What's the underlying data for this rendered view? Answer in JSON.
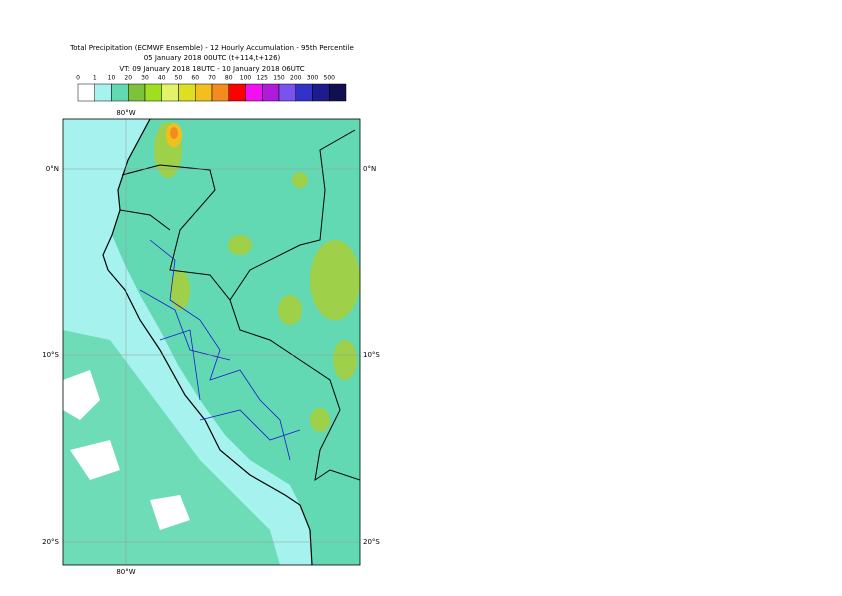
{
  "header": {
    "title_lines": [
      "Total Precipitation (ECMWF Ensemble) - 12 Hourly Accumulation - 95th Percentile",
      "05 January 2018 00UTC (t+114,t+126)",
      "VT: 09 January 2018 18UTC - 10 January 2018 06UTC"
    ]
  },
  "colorbar": {
    "levels": [
      0,
      1,
      10,
      20,
      30,
      40,
      50,
      60,
      70,
      80,
      100,
      125,
      150,
      200,
      300,
      500
    ],
    "colors": [
      "#ffffff",
      "#a6f2ee",
      "#62d9b2",
      "#7cc23a",
      "#9ee020",
      "#e2f26a",
      "#dede22",
      "#f2c01e",
      "#f28c1e",
      "#ff0000",
      "#f010f0",
      "#b01ad8",
      "#7a52f0",
      "#3232c8",
      "#1c1c8c",
      "#10104e"
    ]
  },
  "map": {
    "lon_label_top": "80°W",
    "lon_label_bottom": "80°W",
    "lat_labels_left": [
      "0°N",
      "10°S",
      "20°S"
    ],
    "lat_labels_right": [
      "0°N",
      "10°S",
      "20°S"
    ]
  }
}
